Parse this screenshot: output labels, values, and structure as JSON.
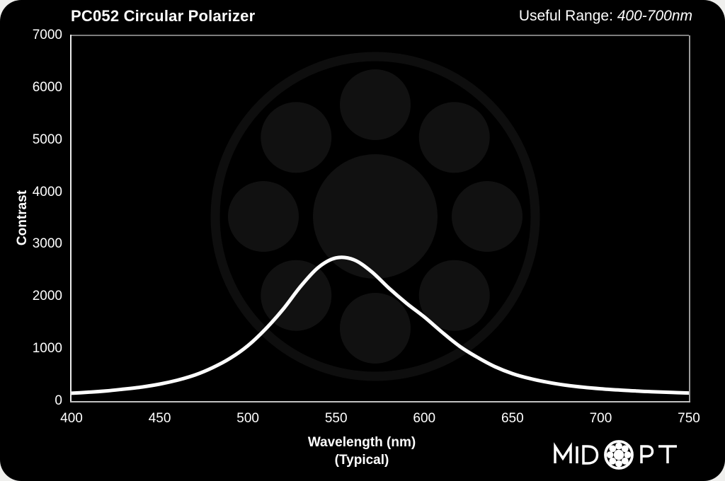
{
  "header": {
    "title": "PC052 Circular Polarizer",
    "useful_range_label": "Useful Range: ",
    "useful_range_value": "400-700nm"
  },
  "chart_data": {
    "type": "line",
    "title": "PC052 Circular Polarizer",
    "xlabel": "Wavelength (nm)",
    "xlabel_note": "(Typical)",
    "ylabel": "Contrast",
    "xlim": [
      400,
      750
    ],
    "ylim": [
      0,
      7000
    ],
    "x_ticks": [
      400,
      450,
      500,
      550,
      600,
      650,
      700,
      750
    ],
    "y_ticks": [
      0,
      1000,
      2000,
      3000,
      4000,
      5000,
      6000,
      7000
    ],
    "grid": false,
    "legend": false,
    "series": [
      {
        "name": "Contrast (Typical)",
        "color": "#ffffff",
        "x": [
          400,
          410,
          420,
          430,
          440,
          450,
          460,
          470,
          480,
          490,
          500,
          510,
          520,
          530,
          540,
          550,
          560,
          570,
          580,
          590,
          600,
          610,
          620,
          630,
          640,
          650,
          660,
          670,
          680,
          690,
          700,
          710,
          720,
          730,
          740,
          750
        ],
        "y": [
          150,
          170,
          195,
          230,
          270,
          325,
          400,
          500,
          640,
          820,
          1060,
          1380,
          1760,
          2200,
          2560,
          2740,
          2705,
          2480,
          2160,
          1870,
          1610,
          1320,
          1050,
          840,
          660,
          525,
          430,
          360,
          305,
          265,
          235,
          212,
          193,
          178,
          165,
          155
        ]
      }
    ],
    "annotations": {
      "peak_wavelength_nm": 553,
      "peak_contrast": 2745
    }
  },
  "branding": {
    "logo_text_left": "MID",
    "logo_text_right": "PT",
    "logo_full_name": "MIDOPT",
    "watermark": "midopt-bearing-logo"
  },
  "colors": {
    "page_bg": "#efefed",
    "card_bg": "#000000",
    "text": "#ffffff",
    "curve": "#ffffff",
    "watermark_fill": "#111111",
    "watermark_ring": "#0e0e0e"
  }
}
